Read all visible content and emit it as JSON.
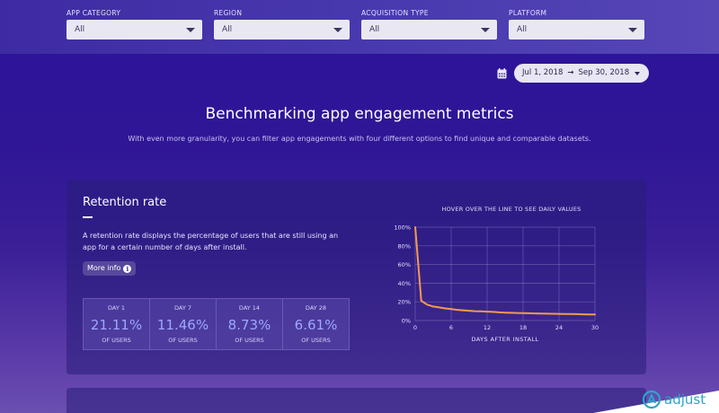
{
  "filters": [
    {
      "label": "APP CATEGORY",
      "value": "All"
    },
    {
      "label": "REGION",
      "value": "All"
    },
    {
      "label": "ACQUISITION TYPE",
      "value": "All"
    },
    {
      "label": "PLATFORM",
      "value": "All"
    }
  ],
  "date_range": {
    "start": "Jul 1, 2018",
    "arrow": "→",
    "end": "Sep 30, 2018",
    "icon": "calendar-icon"
  },
  "hero": {
    "title": "Benchmarking app engagement metrics",
    "subtitle": "With even more granularity, you can filter app engagements with four different options to find unique and comparable datasets."
  },
  "retention": {
    "title": "Retention rate",
    "description": "A retention rate displays the percentage of users that are still using an app for a certain number of days after install.",
    "more_info": "More info",
    "info_icon_glyph": "i",
    "stats": [
      {
        "day": "DAY 1",
        "value": "21.11%",
        "unit": "OF USERS"
      },
      {
        "day": "DAY 7",
        "value": "11.46%",
        "unit": "OF USERS"
      },
      {
        "day": "DAY 14",
        "value": "8.73%",
        "unit": "OF USERS"
      },
      {
        "day": "DAY 28",
        "value": "6.61%",
        "unit": "OF USERS"
      }
    ]
  },
  "chart_data": {
    "type": "line",
    "title": "HOVER OVER THE LINE TO SEE DAILY VALUES",
    "xlabel": "DAYS AFTER INSTALL",
    "ylabel": "",
    "x_ticks": [
      0,
      6,
      12,
      18,
      24,
      30
    ],
    "y_ticks": [
      "0%",
      "20%",
      "40%",
      "60%",
      "80%",
      "100%"
    ],
    "xlim": [
      0,
      30
    ],
    "ylim": [
      0,
      100
    ],
    "grid": true,
    "series": [
      {
        "color": "#f39a4e",
        "x": [
          0,
          1,
          2,
          3,
          4,
          5,
          6,
          7,
          8,
          9,
          10,
          11,
          12,
          13,
          14,
          15,
          16,
          17,
          18,
          19,
          20,
          21,
          22,
          23,
          24,
          25,
          26,
          27,
          28,
          29,
          30
        ],
        "y": [
          100,
          21.11,
          17,
          15,
          14,
          13,
          12.3,
          11.46,
          11,
          10.5,
          10,
          9.8,
          9.5,
          9.2,
          8.73,
          8.5,
          8.3,
          8.1,
          8,
          7.8,
          7.6,
          7.5,
          7.3,
          7.2,
          7.1,
          7,
          6.9,
          6.8,
          6.61,
          6.5,
          6.4
        ]
      }
    ]
  },
  "brand": {
    "name": "adjust",
    "accent": "#2aa6c9"
  }
}
